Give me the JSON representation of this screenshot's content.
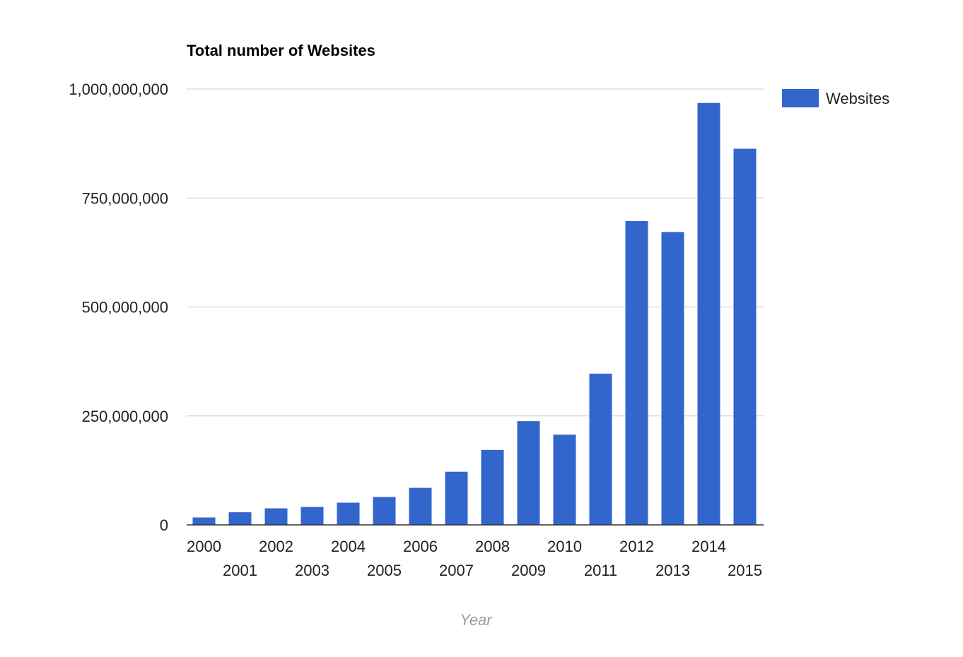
{
  "chart_data": {
    "type": "bar",
    "title": "Total number of Websites",
    "xlabel": "Year",
    "ylabel": "",
    "categories": [
      "2000",
      "2001",
      "2002",
      "2003",
      "2004",
      "2005",
      "2006",
      "2007",
      "2008",
      "2009",
      "2010",
      "2011",
      "2012",
      "2013",
      "2014",
      "2015"
    ],
    "series": [
      {
        "name": "Websites",
        "color": "#3366cc",
        "values": [
          17000000,
          29000000,
          38000000,
          41000000,
          51000000,
          64000000,
          85000000,
          122000000,
          172000000,
          238000000,
          207000000,
          347000000,
          697000000,
          672000000,
          968000000,
          863000000
        ]
      }
    ],
    "ylim": [
      0,
      1000000000
    ],
    "yticks": [
      0,
      250000000,
      500000000,
      750000000,
      1000000000
    ],
    "ytick_labels": [
      "0",
      "250,000,000",
      "500,000,000",
      "750,000,000",
      "1,000,000,000"
    ],
    "grid": true,
    "legend_position": "right"
  }
}
